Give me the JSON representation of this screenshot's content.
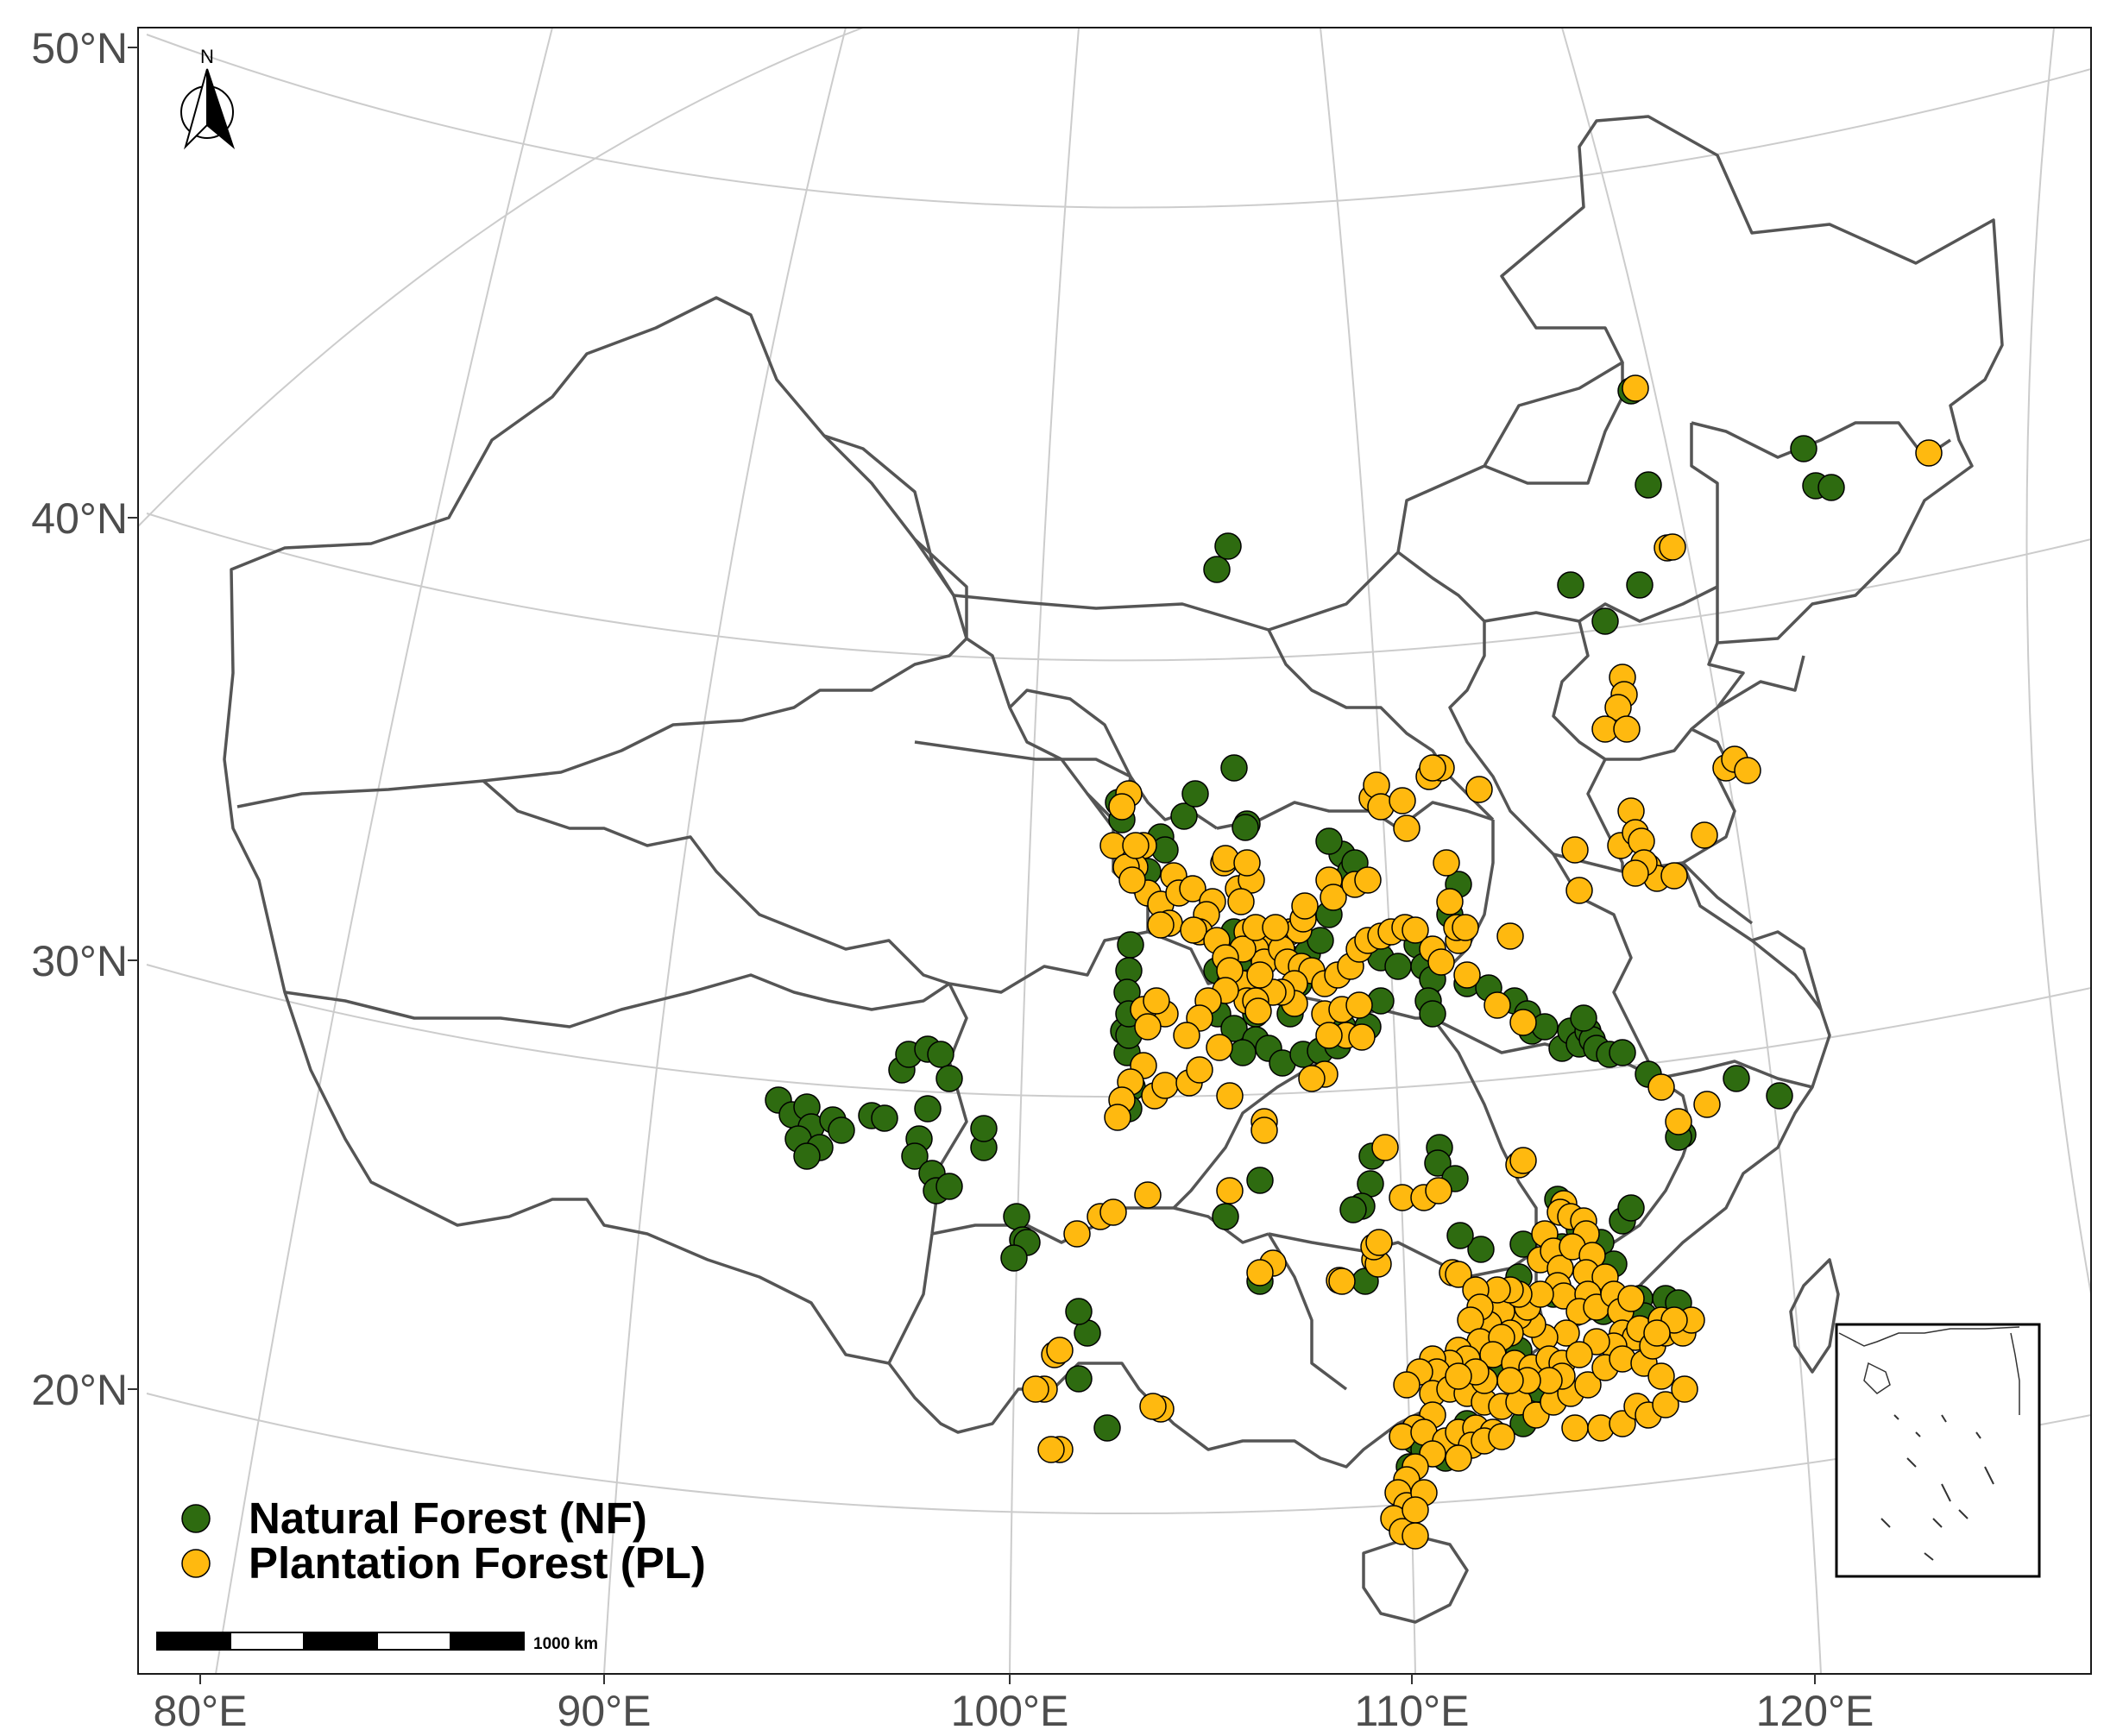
{
  "map": {
    "y_ticks": [
      "50°N",
      "40°N",
      "30°N",
      "20°N"
    ],
    "x_ticks": [
      "80°E",
      "90°E",
      "100°E",
      "110°E",
      "120°E"
    ],
    "north_label": "N",
    "scale_label": "1000 km",
    "legend": {
      "items": [
        {
          "label": "Natural Forest (NF)",
          "color": "#2e6b10"
        },
        {
          "label": "Plantation Forest (PL)",
          "color": "#ffb90f"
        }
      ]
    },
    "colors": {
      "border": "#555555",
      "graticule": "#cccccc",
      "frame": "#1a1a1a",
      "nf": "#2e6b10",
      "pl": "#ffb90f"
    },
    "icons": [
      "north-arrow-icon",
      "scale-bar",
      "inset-map"
    ]
  }
}
